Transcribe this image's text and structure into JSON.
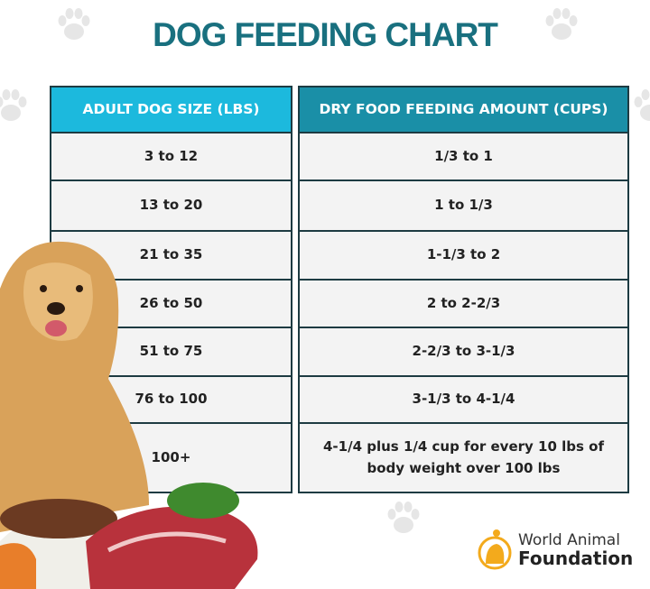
{
  "title": "DOG FEEDING CHART",
  "colors": {
    "title": "#19707f",
    "header_left": "#1cb9dd",
    "header_right": "#1a8fa7",
    "border": "#1d3b42",
    "cell_bg": "#f3f3f3"
  },
  "table": {
    "headers": [
      "ADULT DOG SIZE (LBS)",
      "DRY FOOD FEEDING AMOUNT (CUPS)"
    ],
    "rows": [
      [
        "3 to 12",
        "1/3 to 1"
      ],
      [
        "13 to 20",
        "1 to 1/3"
      ],
      [
        "21 to 35",
        "1-1/3 to 2"
      ],
      [
        "26 to 50",
        "2 to 2-2/3"
      ],
      [
        "51 to 75",
        "2-2/3 to 3-1/3"
      ],
      [
        "76 to 100",
        "3-1/3 to 4-1/4"
      ],
      [
        "100+",
        "4-1/4 plus 1/4 cup for every 10 lbs of body weight over 100 lbs"
      ]
    ]
  },
  "logo": {
    "line1": "World Animal",
    "line2": "Foundation"
  }
}
